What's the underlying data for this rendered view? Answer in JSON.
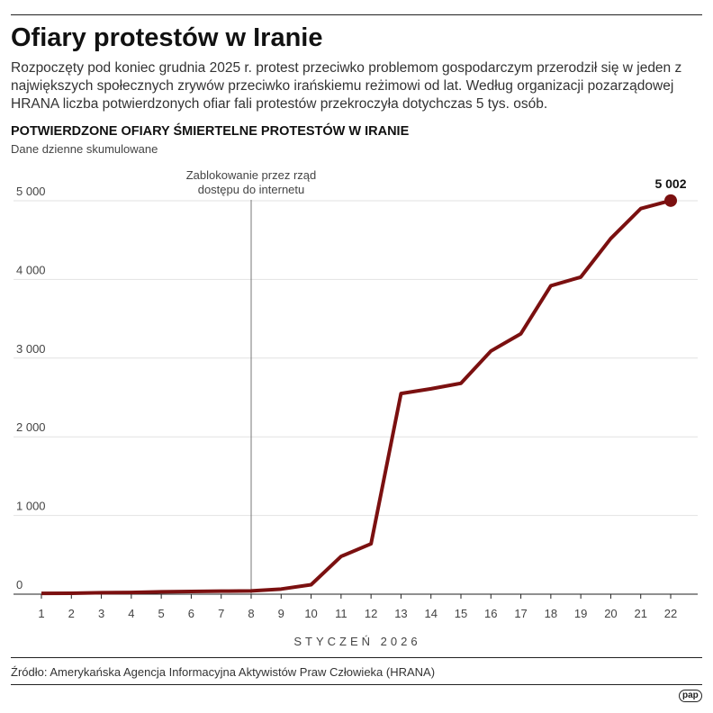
{
  "title": "Ofiary protestów w Iranie",
  "lead": "Rozpoczęty pod koniec grudnia 2025 r. protest przeciwko problemom gospodarczym przerodził się w jeden z największych społecznych zrywów przeciwko irańskiemu reżimowi od lat. Według organizacji pozarządowej HRANA liczba potwierdzonych ofiar fali protestów przekroczyła dotychczas 5 tys. osób.",
  "logo": "pap",
  "source": "Źródło: Amerykańska Agencja Informacyjna Aktywistów Praw Człowieka (HRANA)",
  "chart_data": {
    "type": "line",
    "title": "POTWIERDZONE OFIARY ŚMIERTELNE PROTESTÓW W IRANIE",
    "subtitle": "Dane dzienne skumulowane",
    "xlabel": "STYCZEŃ 2026",
    "ylabel": "",
    "x": [
      1,
      2,
      3,
      4,
      5,
      6,
      7,
      8,
      9,
      10,
      11,
      12,
      13,
      14,
      15,
      16,
      17,
      18,
      19,
      20,
      21,
      22
    ],
    "values": [
      10,
      12,
      18,
      22,
      30,
      35,
      38,
      42,
      65,
      120,
      480,
      640,
      2550,
      2610,
      2680,
      3090,
      3310,
      3920,
      4030,
      4520,
      4900,
      5002
    ],
    "ylim": [
      0,
      5000
    ],
    "yticks": [
      0,
      1000,
      2000,
      3000,
      4000,
      5000
    ],
    "ytick_labels": [
      "0",
      "1 000",
      "2 000",
      "3 000",
      "4 000",
      "5 000"
    ],
    "grid": true,
    "line_color": "#7b1010",
    "annotations": [
      {
        "x": 8,
        "text_lines": [
          "Zablokowanie przez rząd",
          "dostępu do internetu"
        ]
      },
      {
        "x": 22,
        "text": "5 002"
      }
    ]
  }
}
